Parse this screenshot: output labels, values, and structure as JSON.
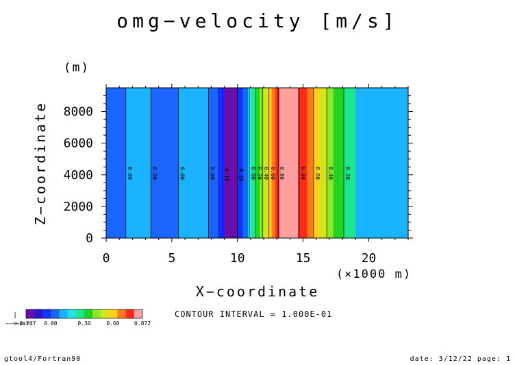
{
  "title": "omg−velocity [m/s]",
  "footer": {
    "left": "gtool4/Fortran90",
    "right": "date: 3/12/22 page: 1"
  },
  "contour_interval": "CONTOUR INTERVAL = 1.000E-01",
  "colorbar": {
    "under_label": "−−−0.207",
    "tick_labels": [
      "−0.207",
      "0.00",
      "0.30",
      "0.60",
      "0.872"
    ],
    "colors": [
      "#6a0dad",
      "#2a17c9",
      "#1233ff",
      "#1a66ff",
      "#19b3ff",
      "#21e6e6",
      "#1ee68c",
      "#22d422",
      "#8ee62a",
      "#d4e61a",
      "#ffd21a",
      "#ff7a1a",
      "#ff2a1a",
      "#ffa0a0"
    ]
  },
  "chart_data": {
    "type": "heatmap",
    "title": "omg−velocity [m/s]",
    "xlabel": "X−coordinate",
    "ylabel": "Z−coordinate",
    "x_unit": "(×1000 m)",
    "y_unit": "(m)",
    "xlim": [
      0,
      23
    ],
    "ylim": [
      0,
      9500
    ],
    "x_ticks": [
      0,
      5,
      10,
      15,
      20
    ],
    "y_ticks": [
      0,
      2000,
      4000,
      6000,
      8000
    ],
    "bands": [
      {
        "x0": 0.0,
        "x1": 1.5,
        "color": "#1a66ff"
      },
      {
        "x0": 1.5,
        "x1": 3.4,
        "color": "#19b3ff"
      },
      {
        "x0": 3.4,
        "x1": 5.5,
        "color": "#1a66ff"
      },
      {
        "x0": 5.5,
        "x1": 7.8,
        "color": "#19b3ff"
      },
      {
        "x0": 7.8,
        "x1": 8.5,
        "color": "#1a66ff"
      },
      {
        "x0": 8.5,
        "x1": 9.0,
        "color": "#1233ff"
      },
      {
        "x0": 9.0,
        "x1": 10.0,
        "color": "#6a0dad"
      },
      {
        "x0": 10.0,
        "x1": 10.4,
        "color": "#1233ff"
      },
      {
        "x0": 10.4,
        "x1": 10.8,
        "color": "#1a66ff"
      },
      {
        "x0": 10.8,
        "x1": 11.1,
        "color": "#21e6e6"
      },
      {
        "x0": 11.1,
        "x1": 11.4,
        "color": "#1ee68c"
      },
      {
        "x0": 11.4,
        "x1": 11.7,
        "color": "#22d422"
      },
      {
        "x0": 11.7,
        "x1": 12.0,
        "color": "#8ee62a"
      },
      {
        "x0": 12.0,
        "x1": 12.3,
        "color": "#d4e61a"
      },
      {
        "x0": 12.3,
        "x1": 12.6,
        "color": "#ffd21a"
      },
      {
        "x0": 12.6,
        "x1": 12.9,
        "color": "#ff7a1a"
      },
      {
        "x0": 12.9,
        "x1": 13.2,
        "color": "#ff2a1a"
      },
      {
        "x0": 13.2,
        "x1": 14.6,
        "color": "#ffa0a0"
      },
      {
        "x0": 14.6,
        "x1": 15.3,
        "color": "#ff2a1a"
      },
      {
        "x0": 15.3,
        "x1": 15.8,
        "color": "#ff7a1a"
      },
      {
        "x0": 15.8,
        "x1": 16.3,
        "color": "#ffd21a"
      },
      {
        "x0": 16.3,
        "x1": 16.8,
        "color": "#d4e61a"
      },
      {
        "x0": 16.8,
        "x1": 17.3,
        "color": "#8ee62a"
      },
      {
        "x0": 17.3,
        "x1": 18.1,
        "color": "#22d422"
      },
      {
        "x0": 18.1,
        "x1": 19.0,
        "color": "#1ee68c"
      },
      {
        "x0": 19.0,
        "x1": 23.0,
        "color": "#19b3ff"
      }
    ],
    "contour_lines": [
      {
        "x": 1.5,
        "label": "0.00"
      },
      {
        "x": 3.4,
        "label": "0.00"
      },
      {
        "x": 5.5,
        "label": "0.00"
      },
      {
        "x": 7.8,
        "label": "0.00"
      },
      {
        "x": 8.9,
        "label": "-0.10"
      },
      {
        "x": 10.0,
        "label": "-0.20"
      },
      {
        "x": 10.9,
        "label": "0.00"
      },
      {
        "x": 11.4,
        "label": "0.20"
      },
      {
        "x": 11.9,
        "label": "0.40"
      },
      {
        "x": 12.4,
        "label": "0.60"
      },
      {
        "x": 13.1,
        "label": "0.80"
      },
      {
        "x": 14.7,
        "label": "0.80"
      },
      {
        "x": 15.8,
        "label": "0.60"
      },
      {
        "x": 16.8,
        "label": "0.40"
      },
      {
        "x": 18.1,
        "label": "0.20"
      }
    ]
  }
}
